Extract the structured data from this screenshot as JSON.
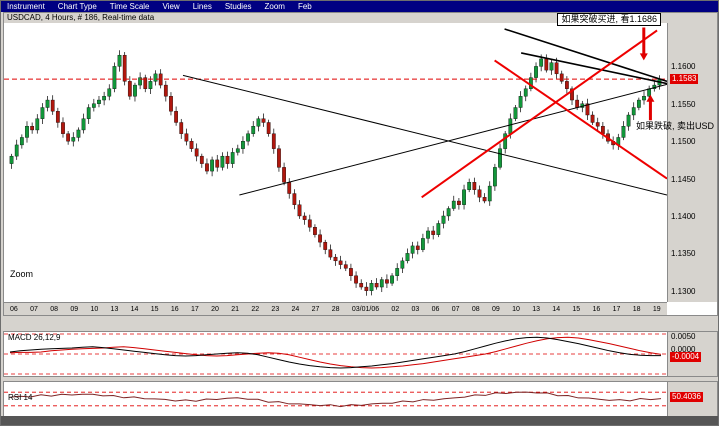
{
  "menubar": {
    "items": [
      "Instrument",
      "Chart Type",
      "Time Scale",
      "View",
      "Lines",
      "Studies",
      "Zoom",
      "Feb"
    ]
  },
  "ui": {
    "zoom_label": "Zoom"
  },
  "colors": {
    "up": "#12973a",
    "down": "#b0170e",
    "accent_red": "#e00000",
    "menubar_bg": "#000082",
    "window_bg": "#d6d3ce"
  },
  "chart_data": [
    {
      "type": "candlestick",
      "title": "USDCAD, 4 Hours, # 186, Real-time data",
      "instrument": "USDCAD",
      "timeframe": "4 Hours",
      "bars_label": "# 186",
      "feed_label": "Real-time data",
      "ylim": [
        1.1285,
        1.1658
      ],
      "y_ticks": [
        "1.1600",
        "1.1550",
        "1.1500",
        "1.1450",
        "1.1400",
        "1.1350",
        "1.1300"
      ],
      "current_price": "1.1583",
      "price_line": 1.1583,
      "x_labels": [
        "06",
        "07",
        "08",
        "09",
        "10",
        "13",
        "14",
        "15",
        "16",
        "17",
        "20",
        "21",
        "22",
        "23",
        "24",
        "27",
        "28",
        "03/01/06",
        "02",
        "03",
        "06",
        "07",
        "08",
        "09",
        "10",
        "13",
        "14",
        "15",
        "16",
        "17",
        "18",
        "19"
      ],
      "open_first": 1.147,
      "closes": [
        1.148,
        1.1495,
        1.1505,
        1.152,
        1.1515,
        1.153,
        1.1545,
        1.1555,
        1.154,
        1.1525,
        1.151,
        1.15,
        1.1505,
        1.1515,
        1.153,
        1.1545,
        1.155,
        1.1555,
        1.156,
        1.157,
        1.16,
        1.1615,
        1.158,
        1.156,
        1.1575,
        1.1585,
        1.157,
        1.158,
        1.159,
        1.1575,
        1.156,
        1.154,
        1.1525,
        1.151,
        1.15,
        1.149,
        1.148,
        1.147,
        1.146,
        1.1475,
        1.1465,
        1.148,
        1.147,
        1.1485,
        1.149,
        1.15,
        1.151,
        1.152,
        1.153,
        1.1525,
        1.151,
        1.149,
        1.1465,
        1.1445,
        1.143,
        1.1415,
        1.14,
        1.1395,
        1.1385,
        1.1375,
        1.1365,
        1.1355,
        1.1345,
        1.134,
        1.1335,
        1.133,
        1.132,
        1.131,
        1.1305,
        1.13,
        1.131,
        1.1305,
        1.1315,
        1.131,
        1.132,
        1.133,
        1.134,
        1.135,
        1.136,
        1.1355,
        1.137,
        1.138,
        1.1375,
        1.139,
        1.14,
        1.141,
        1.142,
        1.1415,
        1.1435,
        1.1445,
        1.1435,
        1.1425,
        1.142,
        1.144,
        1.1465,
        1.149,
        1.151,
        1.153,
        1.1545,
        1.156,
        1.157,
        1.1585,
        1.16,
        1.161,
        1.1595,
        1.1605,
        1.159,
        1.158,
        1.157,
        1.1555,
        1.1545,
        1.155,
        1.1535,
        1.1525,
        1.152,
        1.151,
        1.15,
        1.1495,
        1.1505,
        1.152,
        1.1535,
        1.1545,
        1.1555,
        1.156,
        1.157,
        1.1575,
        1.1583
      ],
      "annotations": {
        "breakout": "如果突破买进, 看1.1686",
        "breakdown": "如果跌破, 卖出USD"
      },
      "trendlines": [
        {
          "x1": 0.27,
          "p1": 1.1588,
          "x2": 1.0,
          "p2": 1.1428,
          "color": "#000000",
          "w": 1
        },
        {
          "x1": 0.355,
          "p1": 1.1428,
          "x2": 1.0,
          "p2": 1.1576,
          "color": "#000000",
          "w": 1
        },
        {
          "x1": 0.755,
          "p1": 1.165,
          "x2": 1.0,
          "p2": 1.158,
          "color": "#000000",
          "w": 1.6
        },
        {
          "x1": 0.78,
          "p1": 1.1618,
          "x2": 1.0,
          "p2": 1.1577,
          "color": "#000000",
          "w": 1.6
        },
        {
          "x1": 0.63,
          "p1": 1.1425,
          "x2": 0.985,
          "p2": 1.1648,
          "color": "#ee0000",
          "w": 2
        },
        {
          "x1": 0.74,
          "p1": 1.1608,
          "x2": 1.0,
          "p2": 1.145,
          "color": "#ee0000",
          "w": 2
        }
      ],
      "arrows": [
        {
          "x": 0.965,
          "from": 1.1652,
          "to": 1.1608,
          "dir": "down"
        },
        {
          "x": 0.975,
          "from": 1.1528,
          "to": 1.1562,
          "dir": "up"
        }
      ]
    },
    {
      "type": "line",
      "name": "MACD 26,12,9",
      "ylim": [
        -0.0055,
        0.0055
      ],
      "ticks": [
        "0.0050",
        "0.0000"
      ],
      "current": "-0.0004",
      "dashed_levels": [
        0.005,
        0,
        -0.005
      ],
      "scale": 0.0001,
      "macd_x1e4": [
        5,
        8,
        10,
        12,
        13,
        14,
        15,
        17,
        18,
        16,
        13,
        10,
        7,
        4,
        1,
        -2,
        -4,
        -5,
        -4,
        -2,
        0,
        2,
        3,
        2,
        -2,
        -8,
        -14,
        -20,
        -25,
        -29,
        -32,
        -34,
        -35,
        -34,
        -32,
        -30,
        -27,
        -24,
        -20,
        -16,
        -12,
        -8,
        -4,
        0,
        6,
        13,
        20,
        27,
        33,
        38,
        41,
        42,
        40,
        36,
        31,
        26,
        20,
        14,
        8,
        3,
        -1,
        -3,
        -4,
        -4
      ],
      "signal_x1e4": [
        3,
        4,
        4,
        5,
        8,
        10,
        12,
        13,
        14,
        15,
        17,
        18,
        16,
        13,
        10,
        7,
        4,
        1,
        -2,
        -4,
        -5,
        -4,
        -2,
        0,
        2,
        3,
        2,
        -2,
        -8,
        -14,
        -20,
        -25,
        -29,
        -32,
        -34,
        -35,
        -34,
        -32,
        -30,
        -27,
        -24,
        -20,
        -16,
        -12,
        -8,
        -4,
        0,
        6,
        13,
        20,
        27,
        33,
        38,
        41,
        42,
        40,
        36,
        31,
        26,
        20,
        14,
        8,
        3,
        -1
      ]
    },
    {
      "type": "line",
      "name": "RSI 14",
      "ylim": [
        0,
        100
      ],
      "dashed_levels": [
        70,
        30
      ],
      "current": "50.4036",
      "values": [
        55,
        57,
        58,
        60,
        61,
        62,
        63,
        64,
        63,
        61,
        58,
        56,
        54,
        52,
        50,
        48,
        46,
        45,
        46,
        48,
        50,
        52,
        53,
        51,
        47,
        43,
        40,
        37,
        35,
        33,
        32,
        31,
        30,
        31,
        33,
        35,
        37,
        39,
        42,
        44,
        46,
        48,
        50,
        53,
        57,
        60,
        63,
        66,
        68,
        69,
        70,
        69,
        66,
        62,
        58,
        55,
        52,
        49,
        47,
        46,
        47,
        49,
        50,
        50
      ]
    }
  ]
}
